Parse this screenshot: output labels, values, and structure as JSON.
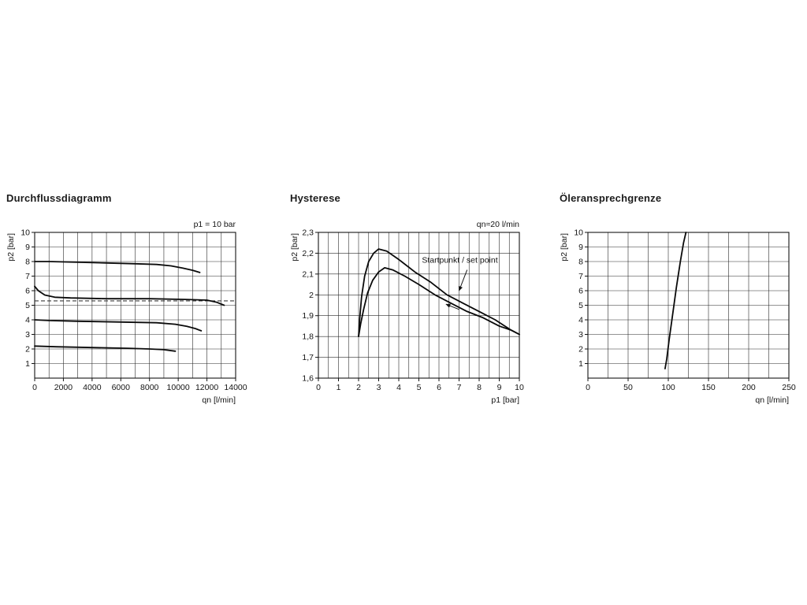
{
  "page": {
    "background": "#ffffff",
    "text_color": "#1c1c1c"
  },
  "chart_data": [
    {
      "id": "durchflussdiagramm",
      "type": "line",
      "title": "Durchflussdiagramm",
      "corner_note": "p1 = 10 bar",
      "xlabel": "qn [l/min]",
      "ylabel": "p2 [bar]",
      "xlim": [
        0,
        14000
      ],
      "ylim": [
        0,
        10
      ],
      "xticks": [
        0,
        2000,
        4000,
        6000,
        8000,
        10000,
        12000,
        14000
      ],
      "xtick_labels": [
        "0",
        "2000",
        "4000",
        "6000",
        "8000",
        "10000",
        "12000",
        "14000"
      ],
      "yticks": [
        1,
        2,
        3,
        4,
        5,
        6,
        7,
        8,
        9,
        10
      ],
      "ytick_labels": [
        "1",
        "2",
        "3",
        "4",
        "5",
        "6",
        "7",
        "8",
        "9",
        "10"
      ],
      "grid": {
        "x_step": 1000,
        "y_step": 1
      },
      "dashed_hline": 5.3,
      "series": [
        {
          "name": "curve-8bar",
          "x": [
            0,
            1000,
            3000,
            5000,
            7000,
            8500,
            9500,
            10300,
            11000,
            11500
          ],
          "y": [
            8.0,
            8.0,
            7.95,
            7.9,
            7.85,
            7.8,
            7.7,
            7.55,
            7.4,
            7.25
          ]
        },
        {
          "name": "curve-6bar",
          "x": [
            0,
            250,
            700,
            1400,
            2500,
            5000,
            8000,
            10500,
            12000,
            12700,
            13200
          ],
          "y": [
            6.3,
            6.0,
            5.7,
            5.55,
            5.5,
            5.45,
            5.45,
            5.4,
            5.35,
            5.2,
            5.0
          ]
        },
        {
          "name": "curve-4bar",
          "x": [
            0,
            1000,
            3000,
            6000,
            8500,
            9800,
            10600,
            11200,
            11600
          ],
          "y": [
            4.0,
            3.95,
            3.9,
            3.85,
            3.8,
            3.7,
            3.55,
            3.4,
            3.25
          ]
        },
        {
          "name": "curve-2bar",
          "x": [
            0,
            1500,
            4000,
            6500,
            8000,
            9000,
            9800
          ],
          "y": [
            2.2,
            2.15,
            2.1,
            2.05,
            2.0,
            1.95,
            1.85
          ]
        }
      ]
    },
    {
      "id": "hysterese",
      "type": "line",
      "title": "Hysterese",
      "corner_note": "qn≈20 l/min",
      "xlabel": "p1 [bar]",
      "ylabel": "p2 [bar]",
      "xlim": [
        0,
        10
      ],
      "ylim": [
        1.6,
        2.3
      ],
      "xticks": [
        0,
        1,
        2,
        3,
        4,
        5,
        6,
        7,
        8,
        9,
        10
      ],
      "xtick_labels": [
        "0",
        "1",
        "2",
        "3",
        "4",
        "5",
        "6",
        "7",
        "8",
        "9",
        "10"
      ],
      "yticks": [
        1.6,
        1.7,
        1.8,
        1.9,
        2.0,
        2.1,
        2.2,
        2.3
      ],
      "ytick_labels": [
        "1,6",
        "1,7",
        "1,8",
        "1,9",
        "2",
        "2,1",
        "2,2",
        "2,3"
      ],
      "grid": {
        "x_step": 0.5,
        "y_step": 0.1
      },
      "series": [
        {
          "name": "hysteresis-upper",
          "x": [
            2.0,
            2.05,
            2.15,
            2.3,
            2.5,
            2.75,
            3.0,
            3.4,
            4.0,
            4.8,
            5.6,
            6.4,
            7.2,
            8.0,
            8.8,
            9.6,
            10.0
          ],
          "y": [
            1.8,
            1.88,
            1.99,
            2.09,
            2.16,
            2.2,
            2.22,
            2.21,
            2.17,
            2.11,
            2.06,
            2.0,
            1.96,
            1.92,
            1.88,
            1.83,
            1.81
          ]
        },
        {
          "name": "hysteresis-lower",
          "x": [
            2.0,
            2.1,
            2.25,
            2.45,
            2.7,
            3.0,
            3.3,
            3.7,
            4.3,
            5.0,
            5.8,
            6.6,
            7.4,
            8.2,
            9.0,
            9.6,
            10.0
          ],
          "y": [
            1.8,
            1.86,
            1.93,
            2.01,
            2.07,
            2.11,
            2.13,
            2.12,
            2.09,
            2.05,
            2.0,
            1.96,
            1.92,
            1.89,
            1.85,
            1.83,
            1.81
          ]
        }
      ],
      "annotations": [
        {
          "text": "Startpunkt / set point",
          "x": 5.15,
          "y": 2.155,
          "anchor": "start"
        }
      ],
      "arrows": [
        {
          "x1": 7.4,
          "y1": 2.12,
          "x2": 7.0,
          "y2": 2.02
        },
        {
          "x1": 7.0,
          "y1": 1.93,
          "x2": 6.35,
          "y2": 1.955
        }
      ]
    },
    {
      "id": "oeleransprechgrenze",
      "type": "line",
      "title": "Öleransprechgrenze",
      "corner_note": "",
      "xlabel": "qn [l/min]",
      "ylabel": "p2 [bar]",
      "xlim": [
        0,
        250
      ],
      "ylim": [
        0,
        10
      ],
      "xticks": [
        0,
        50,
        100,
        150,
        200,
        250
      ],
      "xtick_labels": [
        "0",
        "50",
        "100",
        "150",
        "200",
        "250"
      ],
      "yticks": [
        1,
        2,
        3,
        4,
        5,
        6,
        7,
        8,
        9,
        10
      ],
      "ytick_labels": [
        "1",
        "2",
        "3",
        "4",
        "5",
        "6",
        "7",
        "8",
        "9",
        "10"
      ],
      "grid": {
        "x_step": 25,
        "y_step": 1
      },
      "series": [
        {
          "name": "oil-response-line",
          "x": [
            96,
            98,
            101,
            105,
            110,
            115,
            119,
            122
          ],
          "y": [
            0.65,
            1.3,
            2.6,
            4.2,
            6.2,
            8.0,
            9.3,
            10.0
          ]
        }
      ]
    }
  ]
}
